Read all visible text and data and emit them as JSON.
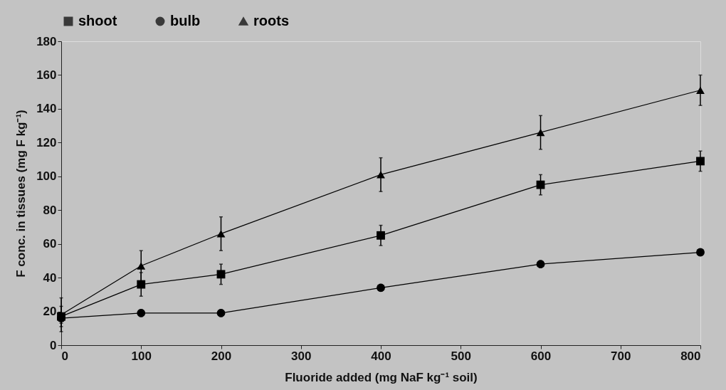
{
  "chart_data": {
    "type": "line",
    "xlabel": "Fluoride added (mg NaF kg⁻¹ soil)",
    "ylabel": "F conc. in tissues (mg F kg⁻¹)",
    "x": [
      0,
      100,
      200,
      400,
      600,
      800
    ],
    "series": [
      {
        "name": "shoot",
        "color": "#000000",
        "marker": "square",
        "values": [
          17,
          36,
          42,
          65,
          95,
          109
        ],
        "errors": [
          6,
          7,
          6,
          6,
          6,
          6
        ]
      },
      {
        "name": "bulb",
        "color": "#000000",
        "marker": "circle",
        "values": [
          16,
          19,
          19,
          34,
          48,
          55
        ],
        "errors": [
          3,
          2,
          2,
          2,
          2,
          2
        ]
      },
      {
        "name": "roots",
        "color": "#000000",
        "marker": "triangle",
        "values": [
          18,
          47,
          66,
          101,
          126,
          151
        ],
        "errors": [
          10,
          9,
          10,
          10,
          10,
          9
        ]
      }
    ],
    "xlim": [
      0,
      800
    ],
    "xticks": [
      0,
      100,
      200,
      300,
      400,
      500,
      600,
      700,
      800
    ],
    "ylim": [
      0,
      180
    ],
    "yticks": [
      0,
      20,
      40,
      60,
      80,
      100,
      120,
      140,
      160,
      180
    ],
    "grid": false,
    "legend": "top",
    "line_style": "solid"
  }
}
